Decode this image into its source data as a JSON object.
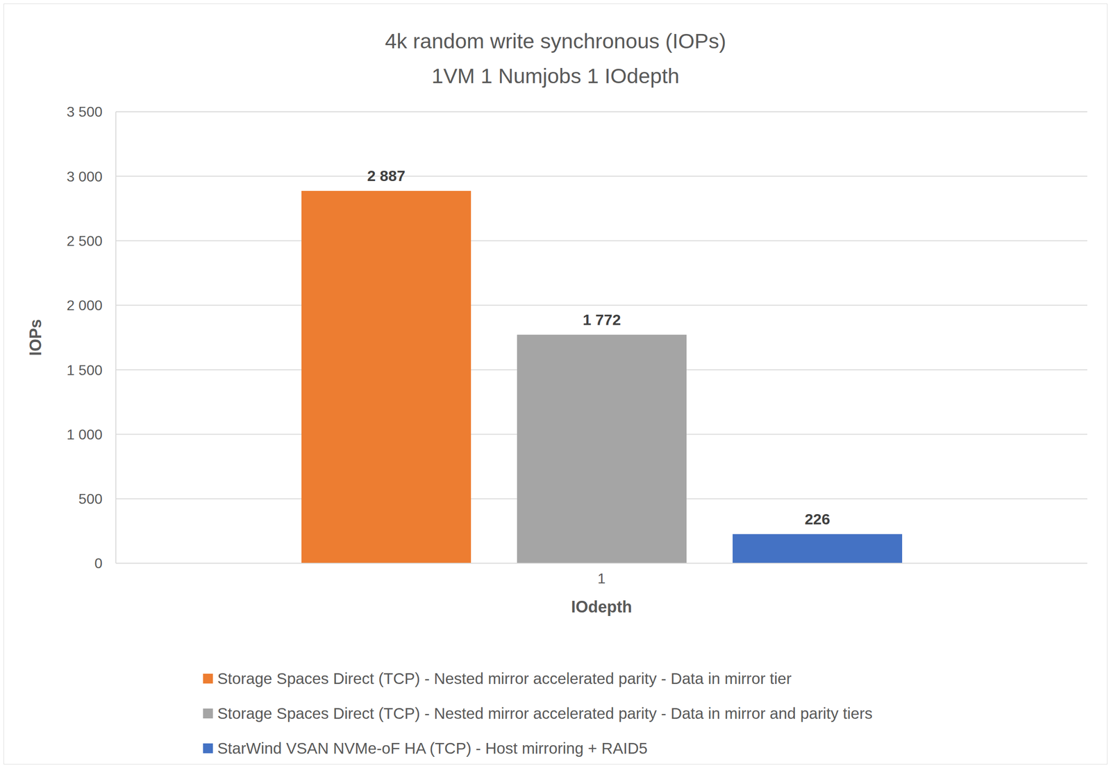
{
  "chart_data": {
    "type": "bar",
    "title": "4k random write synchronous (IOPs)",
    "subtitle": "1VM 1 Numjobs 1 IOdepth",
    "x_label": "IOdepth",
    "y_label": "IOPs",
    "categories": [
      "1"
    ],
    "series": [
      {
        "name": "Storage Spaces Direct (TCP) - Nested mirror accelerated parity - Data in mirror tier",
        "color": "#ed7d31",
        "values": [
          2887
        ],
        "value_labels": [
          "2 887"
        ]
      },
      {
        "name": "Storage Spaces Direct (TCP) - Nested mirror accelerated parity - Data in mirror and parity tiers",
        "color": "#a5a5a5",
        "values": [
          1772
        ],
        "value_labels": [
          "1 772"
        ]
      },
      {
        "name": "StarWind VSAN NVMe-oF HA (TCP) - Host mirroring + RAID5",
        "color": "#4472c4",
        "values": [
          226
        ],
        "value_labels": [
          "226"
        ]
      }
    ],
    "ylim": [
      0,
      3500
    ],
    "yticks": [
      0,
      {
        "value": 500,
        "label": "500"
      },
      {
        "value": 1000,
        "label": "1 000"
      },
      {
        "value": 1500,
        "label": "1 500"
      },
      {
        "value": 2000,
        "label": "2 000"
      },
      {
        "value": 2500,
        "label": "2 500"
      },
      {
        "value": 3000,
        "label": "3 000"
      },
      {
        "value": 3500,
        "label": "3 500"
      }
    ],
    "grid": true,
    "legend": "bottom",
    "data_labels": true
  }
}
